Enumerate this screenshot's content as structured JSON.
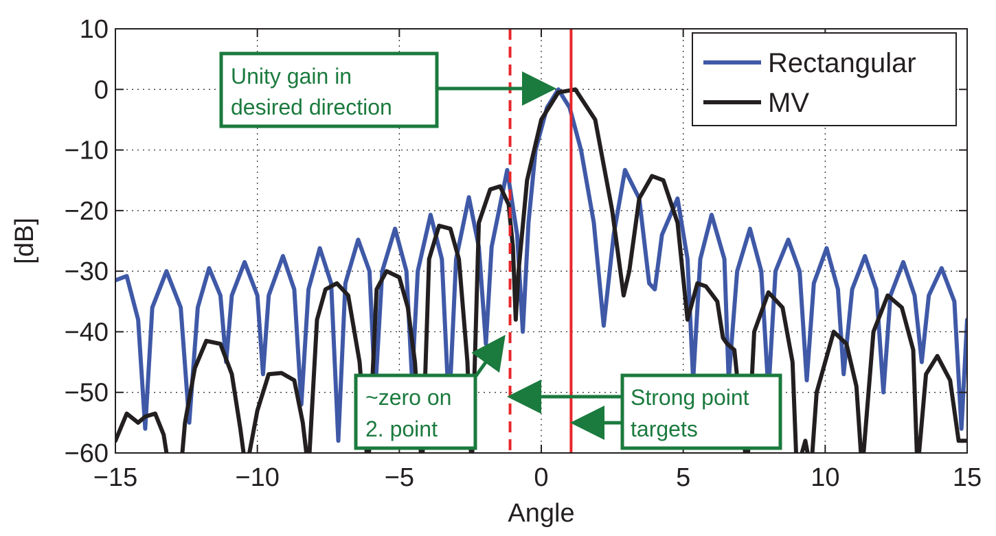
{
  "chart_data": {
    "type": "line",
    "xlabel": "Angle",
    "ylabel": "[dB]",
    "xlim": [
      -15,
      15
    ],
    "ylim": [
      -60,
      10
    ],
    "xticks": [
      -15,
      -10,
      -5,
      0,
      5,
      10,
      15
    ],
    "yticks": [
      -60,
      -50,
      -40,
      -30,
      -20,
      -10,
      0,
      10
    ],
    "xtick_labels": [
      "−15",
      "−10",
      "−5",
      "0",
      "5",
      "10",
      "15"
    ],
    "ytick_labels": [
      "−60",
      "−50",
      "−40",
      "−30",
      "−20",
      "−10",
      "0",
      "10"
    ],
    "grid": true,
    "legend_position": "top-right",
    "series": [
      {
        "name": "Rectangular",
        "color": "#3f59a7",
        "style": "solid",
        "points": [
          [
            -15,
            -31.5
          ],
          [
            -14.6,
            -30.8
          ],
          [
            -14.2,
            -38
          ],
          [
            -13.95,
            -56
          ],
          [
            -13.7,
            -36
          ],
          [
            -13.2,
            -30
          ],
          [
            -12.7,
            -36
          ],
          [
            -12.4,
            -55
          ],
          [
            -12.1,
            -36
          ],
          [
            -11.7,
            -29.5
          ],
          [
            -11.3,
            -34
          ],
          [
            -11.1,
            -45
          ],
          [
            -10.9,
            -34
          ],
          [
            -10.45,
            -28.5
          ],
          [
            -10.0,
            -34
          ],
          [
            -9.8,
            -47
          ],
          [
            -9.6,
            -34
          ],
          [
            -9.1,
            -27.5
          ],
          [
            -8.7,
            -33
          ],
          [
            -8.45,
            -52
          ],
          [
            -8.2,
            -33
          ],
          [
            -7.8,
            -26.2
          ],
          [
            -7.4,
            -32
          ],
          [
            -7.15,
            -58
          ],
          [
            -6.9,
            -32
          ],
          [
            -6.45,
            -24.8
          ],
          [
            -6.05,
            -30
          ],
          [
            -5.85,
            -50
          ],
          [
            -5.6,
            -30
          ],
          [
            -5.15,
            -23
          ],
          [
            -4.75,
            -30
          ],
          [
            -4.55,
            -48
          ],
          [
            -4.35,
            -30
          ],
          [
            -3.9,
            -20.7
          ],
          [
            -3.5,
            -28
          ],
          [
            -3.25,
            -53
          ],
          [
            -3.0,
            -28
          ],
          [
            -2.55,
            -17.8
          ],
          [
            -2.2,
            -26
          ],
          [
            -1.95,
            -42
          ],
          [
            -1.75,
            -26
          ],
          [
            -1.2,
            -13.3
          ],
          [
            -0.85,
            -24
          ],
          [
            -0.65,
            -40
          ],
          [
            -0.45,
            -22
          ],
          [
            -0.2,
            -10
          ],
          [
            0.2,
            -3
          ],
          [
            0.6,
            0
          ],
          [
            1.0,
            -3
          ],
          [
            1.4,
            -10
          ],
          [
            1.85,
            -22
          ],
          [
            2.2,
            -39
          ],
          [
            2.55,
            -24
          ],
          [
            2.95,
            -13.3
          ],
          [
            3.45,
            -18
          ],
          [
            3.8,
            -32
          ],
          [
            4.0,
            -33
          ],
          [
            4.25,
            -24
          ],
          [
            4.8,
            -18
          ],
          [
            5.15,
            -28
          ],
          [
            5.35,
            -48
          ],
          [
            5.6,
            -28
          ],
          [
            6.0,
            -20.7
          ],
          [
            6.45,
            -28
          ],
          [
            6.6,
            -48
          ],
          [
            6.9,
            -30
          ],
          [
            7.35,
            -23
          ],
          [
            7.75,
            -30
          ],
          [
            8.0,
            -50
          ],
          [
            8.25,
            -30
          ],
          [
            8.7,
            -24.8
          ],
          [
            9.1,
            -30
          ],
          [
            9.35,
            -48
          ],
          [
            9.6,
            -32
          ],
          [
            10.05,
            -26.2
          ],
          [
            10.45,
            -33
          ],
          [
            10.65,
            -47
          ],
          [
            10.95,
            -33
          ],
          [
            11.4,
            -27.5
          ],
          [
            11.8,
            -33
          ],
          [
            12.05,
            -50
          ],
          [
            12.3,
            -34
          ],
          [
            12.75,
            -28.5
          ],
          [
            13.15,
            -34
          ],
          [
            13.4,
            -45
          ],
          [
            13.65,
            -34
          ],
          [
            14.1,
            -29.5
          ],
          [
            14.55,
            -35
          ],
          [
            14.8,
            -56
          ],
          [
            15,
            -38
          ]
        ]
      },
      {
        "name": "MV",
        "color": "#231f20",
        "style": "solid",
        "points": [
          [
            -15,
            -58
          ],
          [
            -14.6,
            -53.5
          ],
          [
            -14.2,
            -55
          ],
          [
            -13.95,
            -54
          ],
          [
            -13.6,
            -53.5
          ],
          [
            -13.3,
            -57
          ],
          [
            -13.1,
            -63
          ],
          [
            -12.7,
            -63
          ],
          [
            -12.55,
            -55
          ],
          [
            -12.2,
            -46
          ],
          [
            -11.8,
            -41.5
          ],
          [
            -11.3,
            -42
          ],
          [
            -10.9,
            -47
          ],
          [
            -10.6,
            -56
          ],
          [
            -10.4,
            -63
          ],
          [
            -10.0,
            -53
          ],
          [
            -9.6,
            -47
          ],
          [
            -9.15,
            -46.8
          ],
          [
            -8.7,
            -48
          ],
          [
            -8.4,
            -55
          ],
          [
            -8.2,
            -63
          ],
          [
            -7.9,
            -38
          ],
          [
            -7.6,
            -33
          ],
          [
            -7.2,
            -32
          ],
          [
            -6.8,
            -34
          ],
          [
            -6.4,
            -45
          ],
          [
            -6.1,
            -63
          ],
          [
            -5.8,
            -33
          ],
          [
            -5.45,
            -30
          ],
          [
            -5.0,
            -31
          ],
          [
            -4.7,
            -36
          ],
          [
            -4.45,
            -45
          ],
          [
            -4.2,
            -63
          ],
          [
            -3.95,
            -28
          ],
          [
            -3.6,
            -22.5
          ],
          [
            -3.2,
            -23
          ],
          [
            -2.9,
            -28
          ],
          [
            -2.6,
            -45
          ],
          [
            -2.45,
            -63
          ],
          [
            -2.2,
            -22
          ],
          [
            -1.8,
            -16.5
          ],
          [
            -1.45,
            -16
          ],
          [
            -1.15,
            -19
          ],
          [
            -1.0,
            -26
          ],
          [
            -0.9,
            -38
          ],
          [
            -0.8,
            -30
          ],
          [
            -0.5,
            -15
          ],
          [
            0.0,
            -5
          ],
          [
            0.6,
            -0.5
          ],
          [
            1.2,
            0
          ],
          [
            1.9,
            -5
          ],
          [
            2.5,
            -20
          ],
          [
            2.9,
            -34
          ],
          [
            3.1,
            -30
          ],
          [
            3.45,
            -18
          ],
          [
            3.9,
            -14.3
          ],
          [
            4.3,
            -15
          ],
          [
            4.8,
            -22
          ],
          [
            5.15,
            -38
          ],
          [
            5.5,
            -32
          ],
          [
            5.8,
            -32.5
          ],
          [
            6.2,
            -35
          ],
          [
            6.4,
            -41
          ],
          [
            6.55,
            -42
          ],
          [
            6.8,
            -43
          ],
          [
            7.0,
            -52
          ],
          [
            7.25,
            -63
          ],
          [
            7.5,
            -40
          ],
          [
            8.0,
            -33.5
          ],
          [
            8.5,
            -36
          ],
          [
            8.85,
            -45
          ],
          [
            9.0,
            -63
          ],
          [
            9.3,
            -58
          ],
          [
            9.5,
            -63
          ],
          [
            9.7,
            -50
          ],
          [
            10.3,
            -40
          ],
          [
            10.75,
            -42
          ],
          [
            11.1,
            -49
          ],
          [
            11.3,
            -63
          ],
          [
            11.7,
            -40
          ],
          [
            12.2,
            -34
          ],
          [
            12.7,
            -36
          ],
          [
            13.1,
            -43
          ],
          [
            13.25,
            -63
          ],
          [
            13.55,
            -47
          ],
          [
            13.95,
            -44
          ],
          [
            14.4,
            -48
          ],
          [
            14.7,
            -58
          ],
          [
            15,
            -58
          ]
        ]
      }
    ],
    "reference_lines": [
      {
        "x": 1.05,
        "color": "#e8262b",
        "style": "solid"
      },
      {
        "x": -1.1,
        "color": "#e8262b",
        "style": "dashed"
      }
    ]
  },
  "annotations": {
    "unity": {
      "lines": [
        "Unity gain in",
        "desired direction"
      ]
    },
    "zero": {
      "lines": [
        "~zero on",
        "2. point"
      ]
    },
    "strong": {
      "lines": [
        "Strong point",
        "targets"
      ]
    },
    "color": "#1b7a3e"
  }
}
